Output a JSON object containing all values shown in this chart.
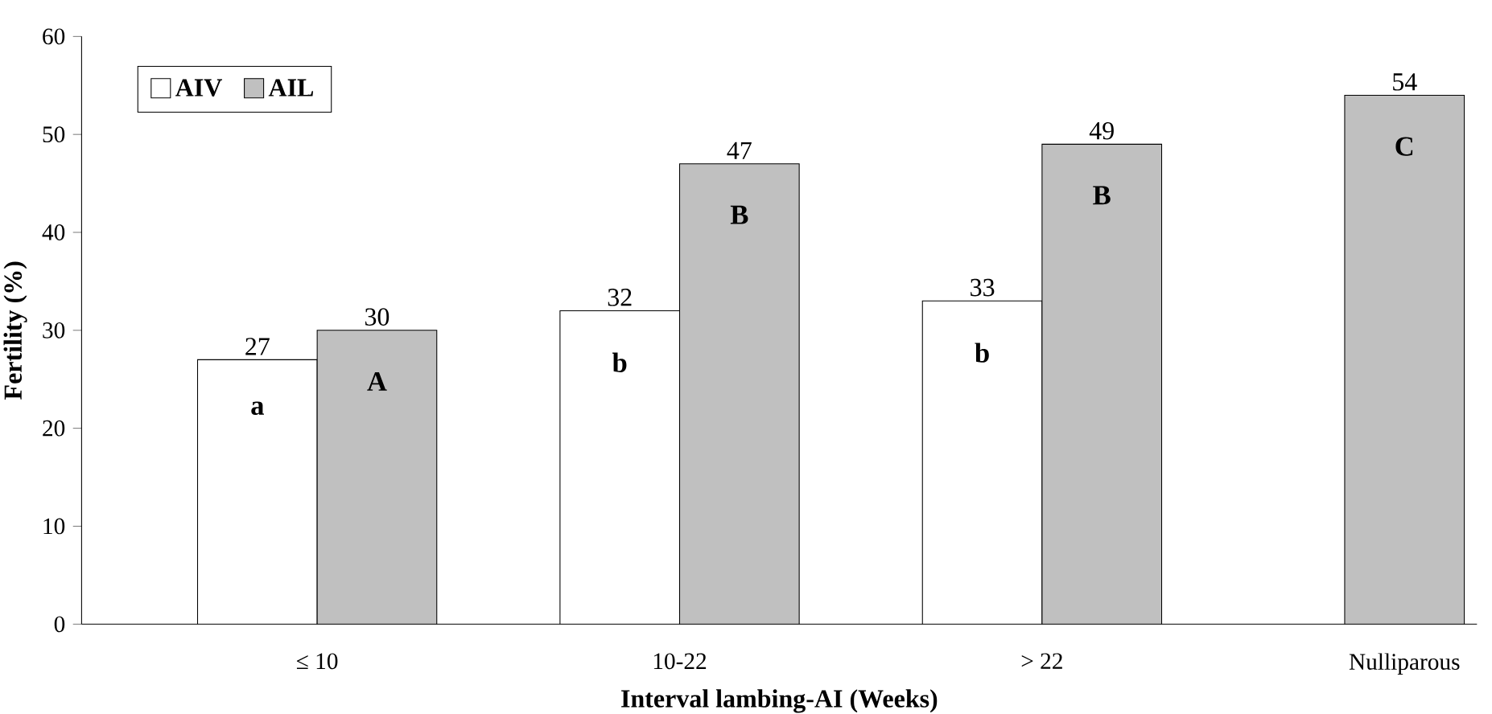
{
  "chart_data": {
    "type": "bar",
    "xlabel": "Interval lambing-AI (Weeks)",
    "ylabel": "Fertility (%)",
    "categories": [
      "≤ 10",
      "10-22",
      "> 22",
      "Nulliparous"
    ],
    "series": [
      {
        "name": "AIV",
        "color": "#ffffff",
        "values": [
          27,
          32,
          33,
          null
        ]
      },
      {
        "name": "AIL",
        "color": "#c0c0c0",
        "values": [
          30,
          47,
          49,
          54
        ]
      }
    ],
    "ylim": [
      0,
      60
    ],
    "yticks": [
      0,
      10,
      20,
      30,
      40,
      50,
      60
    ],
    "data_labels": true,
    "legend": "top left",
    "grid": false,
    "annotations": [
      "a",
      "A",
      "b",
      "B",
      "b",
      "B",
      "C"
    ]
  }
}
